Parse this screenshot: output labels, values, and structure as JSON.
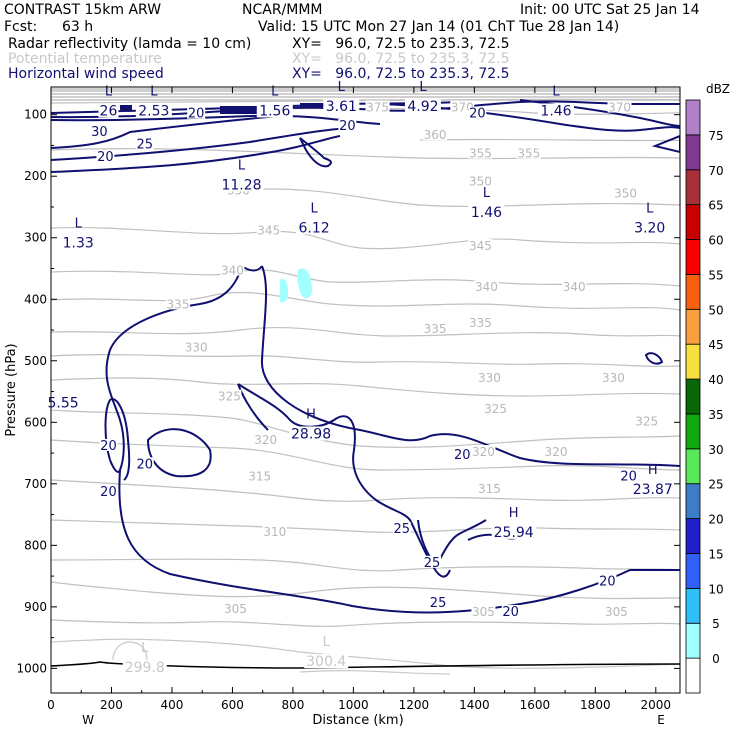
{
  "header": {
    "model": "CONTRAST 15km ARW",
    "org": "NCAR/MMM",
    "init": "Init: 00 UTC Sat 25 Jan 14",
    "fcst_label": "Fcst:",
    "fcst_value": "63 h",
    "valid": "Valid: 15 UTC Mon 27 Jan 14 (01 ChT Tue 28 Jan 14)",
    "fields": [
      {
        "name": "Radar reflectivity (lamda = 10 cm)",
        "xy": "XY=   96.0, 72.5 to 235.3, 72.5",
        "color": "#000000"
      },
      {
        "name": "Potential temperature",
        "xy": "XY=   96.0, 72.5 to 235.3, 72.5",
        "color": "#c8c8c8"
      },
      {
        "name": "Horizontal wind speed",
        "xy": "XY=   96.0, 72.5 to 235.3, 72.5",
        "color": "#101070"
      }
    ]
  },
  "chart_data": {
    "type": "contour",
    "xlabel": "Distance (km)",
    "ylabel": "Pressure (hPa)",
    "xlim": [
      0,
      2080
    ],
    "ylim": [
      1040,
      55
    ],
    "x_ticks": [
      "0",
      "200",
      "400",
      "600",
      "800",
      "1000",
      "1200",
      "1400",
      "1600",
      "1800",
      "2000"
    ],
    "y_ticks": [
      "100",
      "200",
      "300",
      "400",
      "500",
      "600",
      "700",
      "800",
      "900",
      "1000"
    ],
    "x_end_labels": {
      "left": "W",
      "right": "E"
    },
    "colorbar": {
      "unit": "dBZ",
      "levels": [
        "0",
        "5",
        "10",
        "15",
        "20",
        "25",
        "30",
        "35",
        "40",
        "45",
        "50",
        "55",
        "60",
        "65",
        "70",
        "75"
      ],
      "colors": [
        "#ffffff",
        "#a0ffff",
        "#30c0f8",
        "#3060f8",
        "#2020c8",
        "#3c7cc8",
        "#58e858",
        "#10a810",
        "#086808",
        "#f8e040",
        "#f8a040",
        "#f86010",
        "#f80000",
        "#c80000",
        "#a83038",
        "#803890",
        "#b080c8"
      ]
    },
    "theta_labels": [
      {
        "text": "370",
        "x": 1880,
        "p": 90
      },
      {
        "text": "375",
        "x": 1080,
        "p": 90
      },
      {
        "text": "370",
        "x": 1360,
        "p": 90
      },
      {
        "text": "360",
        "x": 1270,
        "p": 135
      },
      {
        "text": "355",
        "x": 1420,
        "p": 165
      },
      {
        "text": "355",
        "x": 1580,
        "p": 165
      },
      {
        "text": "350",
        "x": 620,
        "p": 225
      },
      {
        "text": "350",
        "x": 1420,
        "p": 210
      },
      {
        "text": "350",
        "x": 1900,
        "p": 230
      },
      {
        "text": "345",
        "x": 720,
        "p": 290
      },
      {
        "text": "345",
        "x": 1420,
        "p": 315
      },
      {
        "text": "340",
        "x": 600,
        "p": 355
      },
      {
        "text": "340",
        "x": 1440,
        "p": 382
      },
      {
        "text": "340",
        "x": 1730,
        "p": 382
      },
      {
        "text": "335",
        "x": 420,
        "p": 410
      },
      {
        "text": "335",
        "x": 1270,
        "p": 450
      },
      {
        "text": "335",
        "x": 1420,
        "p": 440
      },
      {
        "text": "330",
        "x": 480,
        "p": 480
      },
      {
        "text": "330",
        "x": 1450,
        "p": 530
      },
      {
        "text": "330",
        "x": 1860,
        "p": 530
      },
      {
        "text": "325",
        "x": 590,
        "p": 560
      },
      {
        "text": "325",
        "x": 1470,
        "p": 580
      },
      {
        "text": "325",
        "x": 1970,
        "p": 600
      },
      {
        "text": "320",
        "x": 710,
        "p": 630
      },
      {
        "text": "320",
        "x": 1430,
        "p": 650
      },
      {
        "text": "320",
        "x": 1670,
        "p": 650
      },
      {
        "text": "315",
        "x": 690,
        "p": 690
      },
      {
        "text": "315",
        "x": 1450,
        "p": 710
      },
      {
        "text": "310",
        "x": 740,
        "p": 780
      },
      {
        "text": "305",
        "x": 610,
        "p": 905
      },
      {
        "text": "305",
        "x": 1430,
        "p": 910
      },
      {
        "text": "305",
        "x": 1870,
        "p": 910
      }
    ],
    "wind_labels": [
      {
        "text": "20",
        "x": 480,
        "p": 100
      },
      {
        "text": "20",
        "x": 980,
        "p": 120
      },
      {
        "text": "20",
        "x": 1410,
        "p": 100
      },
      {
        "text": "30",
        "x": 160,
        "p": 130
      },
      {
        "text": "25",
        "x": 310,
        "p": 150
      },
      {
        "text": "20",
        "x": 180,
        "p": 170
      },
      {
        "text": "20",
        "x": 190,
        "p": 640
      },
      {
        "text": "20",
        "x": 310,
        "p": 670
      },
      {
        "text": "20",
        "x": 190,
        "p": 715
      },
      {
        "text": "20",
        "x": 1360,
        "p": 655
      },
      {
        "text": "20",
        "x": 1910,
        "p": 690
      },
      {
        "text": "25",
        "x": 1160,
        "p": 775
      },
      {
        "text": "25",
        "x": 1260,
        "p": 830
      },
      {
        "text": "25",
        "x": 1280,
        "p": 895
      },
      {
        "text": "20",
        "x": 1520,
        "p": 910
      },
      {
        "text": "20",
        "x": 1840,
        "p": 860
      }
    ],
    "extrema": [
      {
        "kind": "L",
        "value": "26",
        "x": 190,
        "p": 85,
        "color": "#101070"
      },
      {
        "kind": "L",
        "value": "2.53",
        "x": 340,
        "p": 85,
        "color": "#101070"
      },
      {
        "kind": "L",
        "value": "1.56",
        "x": 740,
        "p": 85,
        "color": "#101070"
      },
      {
        "kind": "L",
        "value": "3.61",
        "x": 960,
        "p": 78,
        "color": "#101070"
      },
      {
        "kind": "L",
        "value": "4.92",
        "x": 1230,
        "p": 78,
        "color": "#101070"
      },
      {
        "kind": "L",
        "value": "1.46",
        "x": 1670,
        "p": 85,
        "color": "#101070"
      },
      {
        "kind": "L",
        "value": "11.28",
        "x": 630,
        "p": 205,
        "color": "#101070"
      },
      {
        "kind": "L",
        "value": "6.12",
        "x": 870,
        "p": 275,
        "color": "#101070"
      },
      {
        "kind": "L",
        "value": "1.46",
        "x": 1440,
        "p": 250,
        "color": "#101070"
      },
      {
        "kind": "L",
        "value": "3.20",
        "x": 1980,
        "p": 275,
        "color": "#101070"
      },
      {
        "kind": "L",
        "value": "1.33",
        "x": 90,
        "p": 300,
        "color": "#101070"
      },
      {
        "kind": "",
        "value": "5.55",
        "x": 40,
        "p": 560,
        "color": "#101070"
      },
      {
        "kind": "H",
        "value": "28.98",
        "x": 860,
        "p": 610,
        "color": "#101070"
      },
      {
        "kind": "H",
        "value": "23.87",
        "x": 1990,
        "p": 700,
        "color": "#101070"
      },
      {
        "kind": "H",
        "value": "25.94",
        "x": 1530,
        "p": 770,
        "color": "#101070"
      },
      {
        "kind": "L",
        "value": "299.8",
        "x": 310,
        "p": 990,
        "color": "#c8c8c8"
      },
      {
        "kind": "L",
        "value": "300.4",
        "x": 910,
        "p": 980,
        "color": "#c8c8c8"
      }
    ]
  }
}
